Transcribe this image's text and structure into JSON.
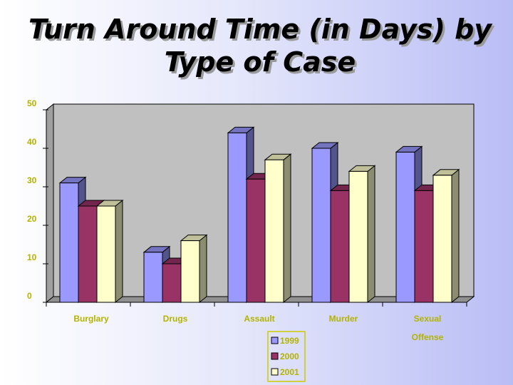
{
  "chart_data": {
    "type": "bar3d",
    "title": "Turn Around Time (in Days) by Type of Case",
    "categories": [
      "Burglary",
      "Drugs",
      "Assault",
      "Murder",
      "Sexual Offense"
    ],
    "series": [
      {
        "name": "1999",
        "color": "#9999ff",
        "values": [
          31,
          13,
          44,
          40,
          39
        ]
      },
      {
        "name": "2000",
        "color": "#993366",
        "values": [
          25,
          10,
          32,
          29,
          29
        ]
      },
      {
        "name": "2001",
        "color": "#ffffcc",
        "values": [
          25,
          16,
          37,
          34,
          33
        ]
      }
    ],
    "ylim": [
      0,
      50
    ],
    "yticks": [
      0,
      10,
      20,
      30,
      40,
      50
    ],
    "legend": "bottom"
  }
}
